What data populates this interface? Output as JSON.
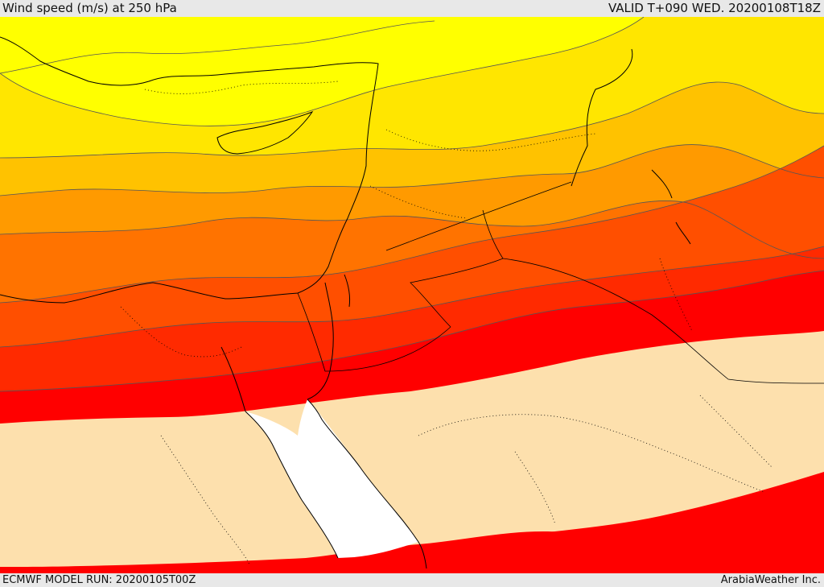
{
  "header": {
    "title": "Wind speed (m/s) at 250 hPa",
    "valid_time": "VALID T+090 WED. 20200108T18Z"
  },
  "footer": {
    "model_run": "ECMWF MODEL RUN: 20200105T00Z",
    "credit": "ArabiaWeather Inc."
  },
  "map": {
    "field": "wind speed",
    "level_hPa": 250,
    "colors": {
      "fastest_band": "#ffff00",
      "band_2": "#ffe600",
      "band_3": "#ffc200",
      "band_4": "#ff9a00",
      "band_5": "#ff7300",
      "band_6": "#ff4f00",
      "band_7": "#ff2a00",
      "band_8": "#ff0000",
      "slow_land": "#fde0ad",
      "sea_uncolored": "#ffffff"
    }
  }
}
